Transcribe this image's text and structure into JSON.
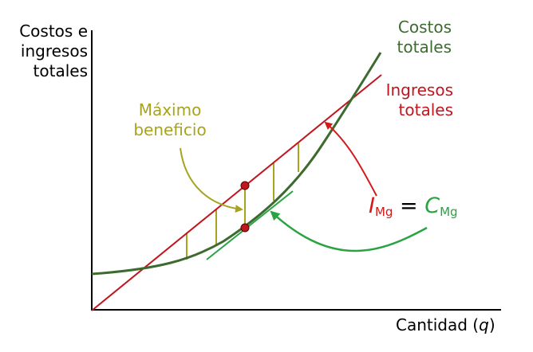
{
  "axes": {
    "y_label_lines": [
      "Costos e",
      "ingresos",
      "totales"
    ],
    "x_label_text": "Cantidad (",
    "x_label_var": "q",
    "x_label_end": ")"
  },
  "curves": {
    "total_costs_lines": [
      "Costos",
      "totales"
    ],
    "total_revenue_lines": [
      "Ingresos",
      "totales"
    ]
  },
  "annotations": {
    "max_profit_lines": [
      "Máximo",
      "beneficio"
    ],
    "marginal_equation": {
      "i_symbol": "I",
      "i_sub": "Mg",
      "equals": " = ",
      "c_symbol": "C",
      "c_sub": "Mg"
    }
  },
  "colors": {
    "axis": "#000000",
    "total_costs": "#3d6b2f",
    "total_revenue": "#c0161f",
    "max_profit": "#a8a31c",
    "marginal_revenue": "#d21a1a",
    "marginal_cost": "#2aa343",
    "points": "#c0161f"
  }
}
